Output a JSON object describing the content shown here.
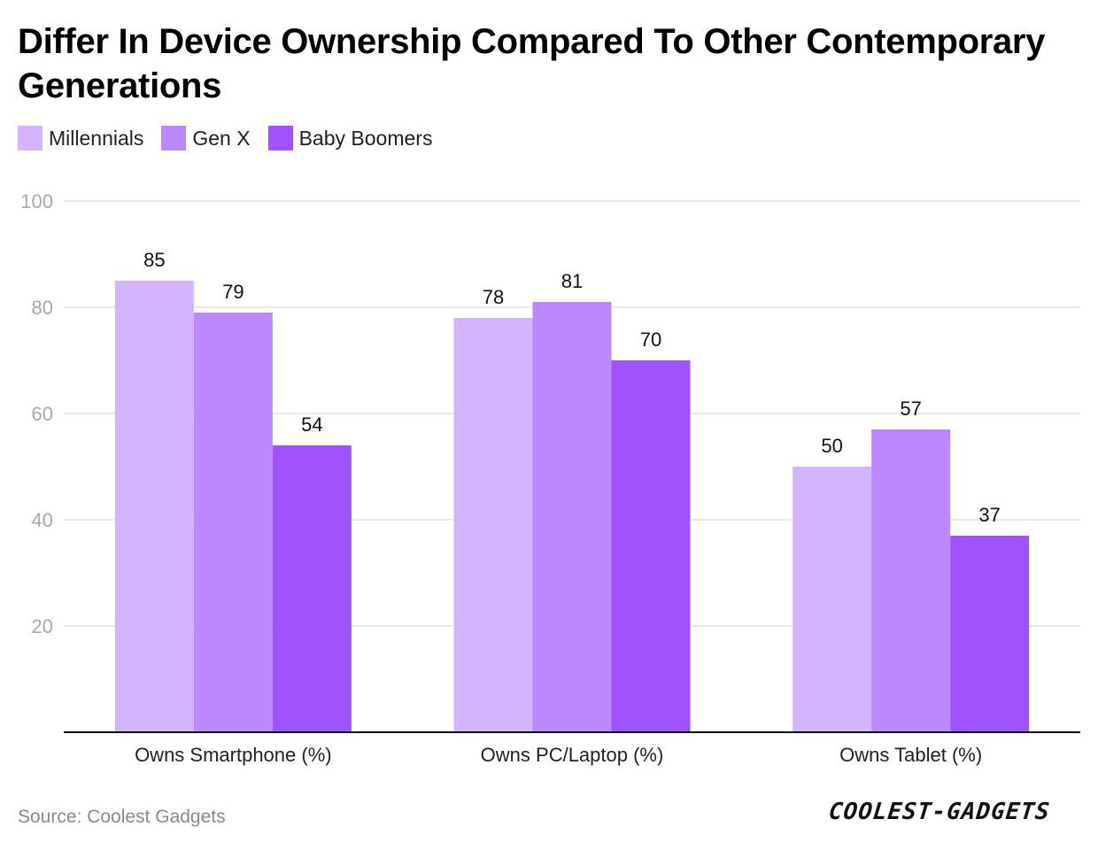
{
  "title": "Differ In Device Ownership Compared To Other Contemporary Generations",
  "source": "Source: Coolest Gadgets",
  "logo_text": "COOLEST-GADGETS",
  "colors": {
    "millennials": "#d3b4fe",
    "gen_x": "#bb88fd",
    "baby_boomers": "#a052fd",
    "grid": "#e3e3e3",
    "axis": "#111111",
    "tick": "#a8a8a8"
  },
  "chart_data": {
    "type": "bar",
    "title": "Differ In Device Ownership Compared To Other Contemporary Generations",
    "xlabel": "",
    "ylabel": "",
    "ylim": [
      0,
      100
    ],
    "yticks": [
      20,
      40,
      60,
      80,
      100
    ],
    "grid": true,
    "legend": "top-left",
    "categories": [
      "Owns Smartphone (%)",
      "Owns PC/Laptop (%)",
      "Owns Tablet (%)"
    ],
    "series": [
      {
        "name": "Millennials",
        "key": "millennials",
        "values": [
          85,
          78,
          50
        ]
      },
      {
        "name": "Gen X",
        "key": "gen_x",
        "values": [
          79,
          81,
          57
        ]
      },
      {
        "name": "Baby Boomers",
        "key": "baby_boomers",
        "values": [
          54,
          70,
          37
        ]
      }
    ]
  }
}
